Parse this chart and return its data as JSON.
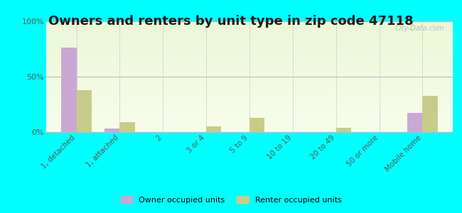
{
  "title": "Owners and renters by unit type in zip code 47118",
  "categories": [
    "1, detached",
    "1, attached",
    "2",
    "3 or 4",
    "5 to 9",
    "10 to 19",
    "20 to 49",
    "50 or more",
    "Mobile home"
  ],
  "owner_values": [
    76,
    3,
    0,
    0,
    0,
    0,
    0,
    0,
    17
  ],
  "renter_values": [
    38,
    9,
    0,
    5,
    13,
    0,
    4,
    0,
    33
  ],
  "owner_color": "#c9a8d4",
  "renter_color": "#c8cc8a",
  "outer_bg": "#00ffff",
  "ylim": [
    0,
    100
  ],
  "yticks": [
    0,
    50,
    100
  ],
  "ytick_labels": [
    "0%",
    "50%",
    "100%"
  ],
  "bar_width": 0.35,
  "legend_owner": "Owner occupied units",
  "legend_renter": "Renter occupied units",
  "title_fontsize": 13,
  "watermark": "City-Data.com"
}
